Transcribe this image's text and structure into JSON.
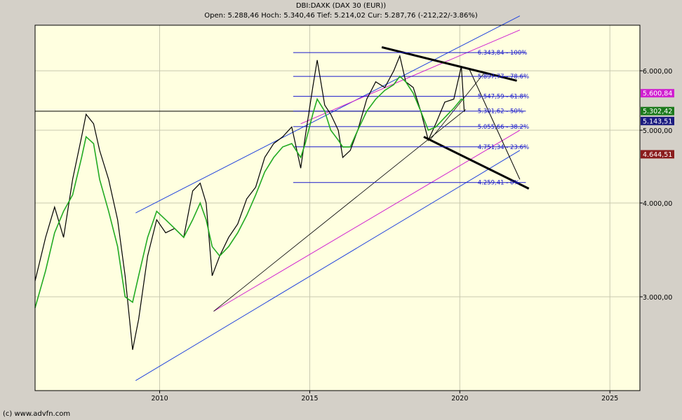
{
  "header": {
    "title": "DBI:DAXK (DAX 30 (EUR))",
    "quote": "Open: 5.288,46 Hoch: 5.340,46 Tief: 5.214,02 Cur: 5.287,76 (-212,22/-3.86%)"
  },
  "footer": {
    "copyright": "(c) www.advfn.com"
  },
  "colors": {
    "plot_bg": "#ffffe0",
    "frame_bg": "#d4d0c8",
    "price": "#000000",
    "ma_green": "#22aa22",
    "ma_cyan": "#22c3c8",
    "ma_magenta": "#d020d0",
    "ma_navy": "#223388",
    "ma_darkred": "#702020",
    "channel_blue": "#2244dd",
    "fib_blue": "#1a1acc"
  },
  "chart_data": {
    "type": "line",
    "scale": "log",
    "grid": true,
    "x": [
      2005.85,
      2006.2,
      2006.5,
      2006.8,
      2007.1,
      2007.4,
      2007.55,
      2007.8,
      2008.0,
      2008.3,
      2008.6,
      2008.85,
      2009.1,
      2009.3,
      2009.6,
      2009.9,
      2010.2,
      2010.5,
      2010.8,
      2011.1,
      2011.35,
      2011.55,
      2011.75,
      2012.0,
      2012.3,
      2012.6,
      2012.9,
      2013.2,
      2013.5,
      2013.8,
      2014.1,
      2014.4,
      2014.7,
      2014.85,
      2015.1,
      2015.25,
      2015.5,
      2015.7,
      2015.95,
      2016.1,
      2016.35,
      2016.6,
      2016.9,
      2017.2,
      2017.5,
      2017.8,
      2018.0,
      2018.2,
      2018.45,
      2018.7,
      2018.95,
      2019.2,
      2019.5,
      2019.8,
      2020.05,
      2020.15
    ],
    "series": [
      {
        "values": [
          3150,
          3600,
          3950,
          3600,
          4300,
          4900,
          5250,
          5100,
          4700,
          4300,
          3800,
          3200,
          2550,
          2800,
          3400,
          3800,
          3650,
          3700,
          3600,
          4150,
          4250,
          4000,
          3200,
          3400,
          3600,
          3750,
          4050,
          4200,
          4600,
          4800,
          4900,
          5050,
          4450,
          4900,
          5700,
          6200,
          5400,
          5250,
          5000,
          4600,
          4700,
          5000,
          5500,
          5800,
          5700,
          6000,
          6280,
          5800,
          5700,
          5300,
          4850,
          5100,
          5450,
          5500,
          6080,
          5290
        ]
      },
      {
        "name": "",
        "values": [
          2900,
          3250,
          3650,
          3900,
          4100,
          4600,
          4900,
          4800,
          4300,
          3900,
          3500,
          3000,
          2950,
          3200,
          3600,
          3900,
          3800,
          3700,
          3600,
          3800,
          4000,
          3800,
          3500,
          3400,
          3500,
          3650,
          3850,
          4100,
          4400,
          4600,
          4750,
          4800,
          4600,
          4800,
          5250,
          5500,
          5300,
          5000,
          4850,
          4750,
          4750,
          5000,
          5300,
          5500,
          5650,
          5750,
          5900,
          5800,
          5600,
          5300,
          5000,
          5050,
          5200,
          5350,
          5500,
          5480
        ]
      }
    ],
    "fib_levels": [
      {
        "value": 6343.84,
        "label": "6.343,84 - 100%"
      },
      {
        "value": 5897.77,
        "label": "5.897,77 - 78.6%"
      },
      {
        "value": 5547.59,
        "label": "5.547,59 - 61.8%"
      },
      {
        "value": 5301.62,
        "label": "5.301,62 - 50%"
      },
      {
        "value": 5055.66,
        "label": "5.055,66 - 38.2%"
      },
      {
        "value": 4751.34,
        "label": "4.751,34 - 23.6%"
      },
      {
        "value": 4259.41,
        "label": "4.259,41 - 0%"
      }
    ],
    "price_tags": [
      {
        "value": 5600.84,
        "label": "5.600,84",
        "color": "#d020d0"
      },
      {
        "value": 5302.42,
        "label": "5.302,42",
        "color": "#1c7a1c"
      },
      {
        "value": 5143.51,
        "label": "5.143,51",
        "color": "#1c1c80"
      },
      {
        "value": 4644.51,
        "label": "4.644,51",
        "color": "#8a1c1c"
      }
    ],
    "y_ticks": [
      {
        "value": 3000,
        "label": "3.000,00"
      },
      {
        "value": 4000,
        "label": "4.000,00"
      },
      {
        "value": 5000,
        "label": "5.000,00"
      },
      {
        "value": 6000,
        "label": "6.000,00"
      }
    ],
    "x_ticks": [
      {
        "value": 2010,
        "label": "2010"
      },
      {
        "value": 2015,
        "label": "2015"
      },
      {
        "value": 2020,
        "label": "2020"
      },
      {
        "value": 2025,
        "label": "2025"
      }
    ],
    "xlim": [
      2005.85,
      2026.0
    ],
    "ylim": [
      2250,
      6900
    ]
  }
}
